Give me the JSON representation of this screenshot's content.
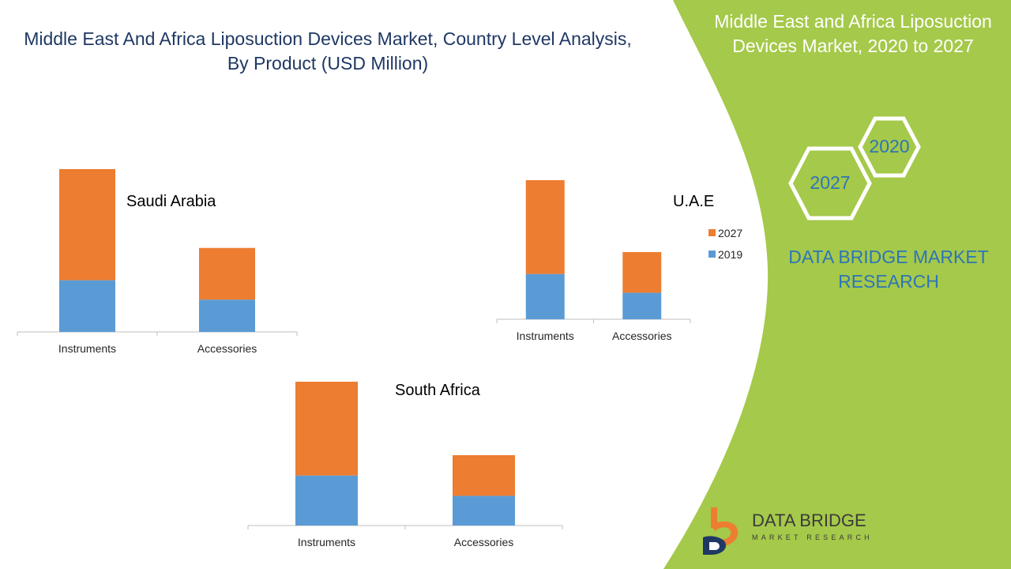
{
  "title": {
    "line1": "Middle East And Africa Liposuction Devices Market, Country Level Analysis,",
    "line2": "By Product (USD Million)"
  },
  "side_panel": {
    "title_line1": "Middle East and Africa Liposuction",
    "title_line2": "Devices Market, 2020 to 2027",
    "hex_2020": "2020",
    "hex_2027": "2027",
    "company_line1": "DATA BRIDGE MARKET",
    "company_line2": "RESEARCH"
  },
  "logo": {
    "name": "DATA BRIDGE",
    "tagline": "MARKET RESEARCH"
  },
  "colors": {
    "series_2019": "#5B9BD5",
    "series_2027": "#ED7D31",
    "panel_green": "#A5C94A",
    "title_blue": "#1F3864",
    "accent_blue": "#2E75B6"
  },
  "chart_data": [
    {
      "type": "bar",
      "stacked": true,
      "title": "Saudi Arabia",
      "categories": [
        "Instruments",
        "Accessories"
      ],
      "series": [
        {
          "name": "2019",
          "values": [
            4.0,
            2.5
          ]
        },
        {
          "name": "2027",
          "values": [
            8.6,
            4.0
          ]
        }
      ],
      "ylim": [
        0,
        12.6
      ]
    },
    {
      "type": "bar",
      "stacked": true,
      "title": "U.A.E",
      "categories": [
        "Instruments",
        "Accessories"
      ],
      "series": [
        {
          "name": "2019",
          "values": [
            2.9,
            1.7
          ]
        },
        {
          "name": "2027",
          "values": [
            6.0,
            2.6
          ]
        }
      ],
      "ylim": [
        0,
        8.9
      ],
      "legend": [
        "2027",
        "2019"
      ]
    },
    {
      "type": "bar",
      "stacked": true,
      "title": "South Africa",
      "categories": [
        "Instruments",
        "Accessories"
      ],
      "series": [
        {
          "name": "2019",
          "values": [
            3.2,
            1.9
          ]
        },
        {
          "name": "2027",
          "values": [
            6.0,
            2.6
          ]
        }
      ],
      "ylim": [
        0,
        9.2
      ]
    }
  ]
}
